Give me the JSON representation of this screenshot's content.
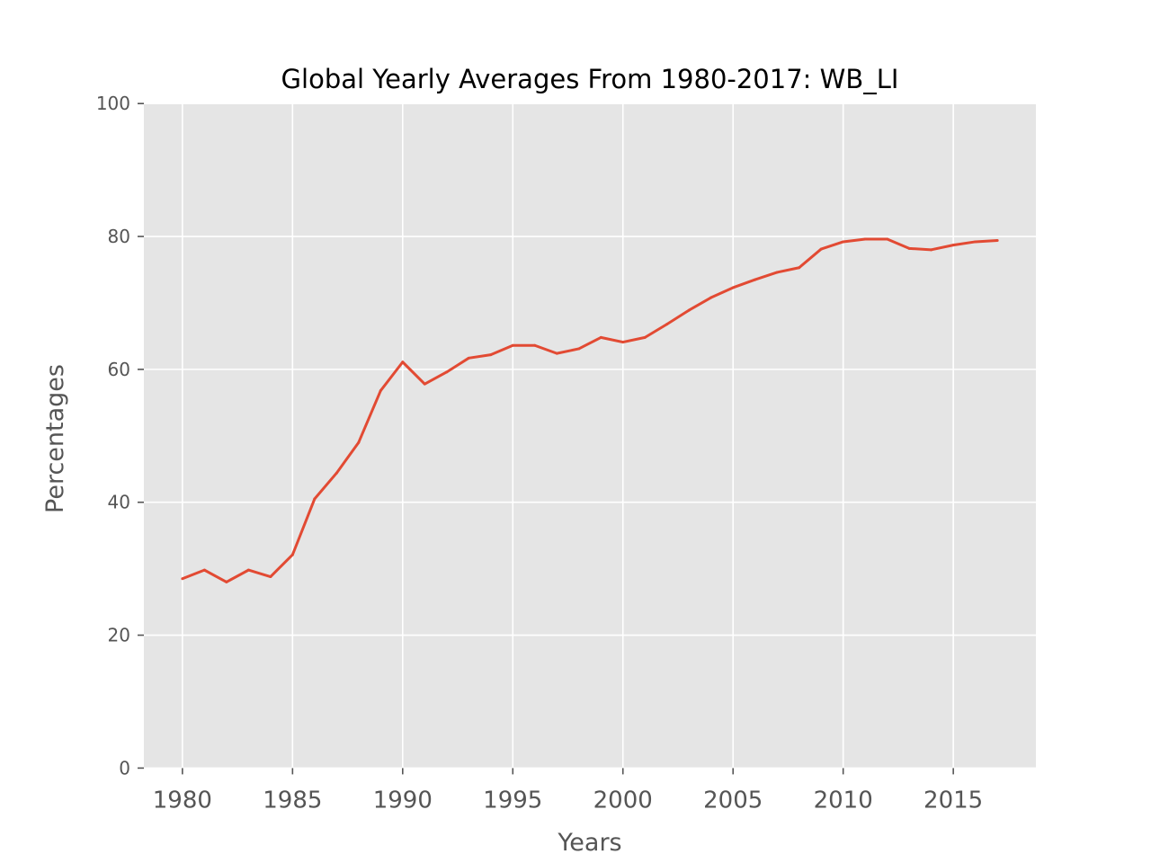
{
  "chart_data": {
    "type": "line",
    "title": "Global Yearly Averages From 1980-2017: WB_LI",
    "xlabel": "Years",
    "ylabel": "Percentages",
    "xlim": [
      1978.25,
      2018.75
    ],
    "ylim": [
      0,
      100
    ],
    "xticks": [
      1980,
      1985,
      1990,
      1995,
      2000,
      2005,
      2010,
      2015
    ],
    "yticks": [
      0,
      20,
      40,
      60,
      80,
      100
    ],
    "grid": true,
    "colors": {
      "line": "#e24a33",
      "plot_bg": "#e5e5e5",
      "grid": "#ffffff",
      "tick": "#555555"
    },
    "x": [
      1980,
      1981,
      1982,
      1983,
      1984,
      1985,
      1986,
      1987,
      1988,
      1989,
      1990,
      1991,
      1992,
      1993,
      1994,
      1995,
      1996,
      1997,
      1998,
      1999,
      2000,
      2001,
      2002,
      2003,
      2004,
      2005,
      2006,
      2007,
      2008,
      2009,
      2010,
      2011,
      2012,
      2013,
      2014,
      2015,
      2016,
      2017
    ],
    "series": [
      {
        "values": [
          28.5,
          29.8,
          28.0,
          29.8,
          28.8,
          32.1,
          40.5,
          44.4,
          49.0,
          56.8,
          61.1,
          57.8,
          59.6,
          61.7,
          62.2,
          63.6,
          63.6,
          62.4,
          63.1,
          64.8,
          64.1,
          64.8,
          66.8,
          68.9,
          70.8,
          72.3,
          73.5,
          74.6,
          75.3,
          78.1,
          79.2,
          79.6,
          79.6,
          78.2,
          78.0,
          78.7,
          79.2,
          79.4
        ]
      }
    ]
  }
}
